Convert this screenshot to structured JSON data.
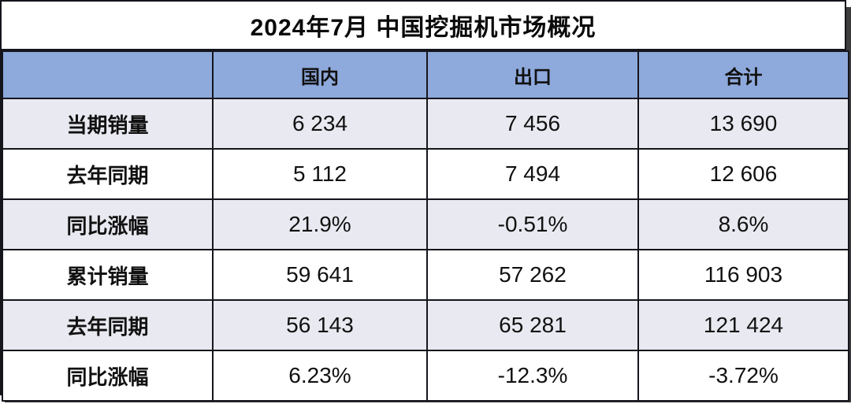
{
  "title": "2024年7月 中国挖掘机市场概况",
  "chart_data": {
    "type": "table",
    "title": "2024年7月 中国挖掘机市场概况",
    "columns": [
      "",
      "国内",
      "出口",
      "合计"
    ],
    "rows": [
      [
        "当期销量",
        "6 234",
        "7 456",
        "13 690"
      ],
      [
        "去年同期",
        "5 112",
        "7 494",
        "12 606"
      ],
      [
        "同比涨幅",
        "21.9%",
        "-0.51%",
        "8.6%"
      ],
      [
        "累计销量",
        "59 641",
        "57 262",
        "116 903"
      ],
      [
        "去年同期",
        "56 143",
        "65 281",
        "121 424"
      ],
      [
        "同比涨幅",
        "6.23%",
        "-12.3%",
        "-3.72%"
      ]
    ],
    "layout": {
      "striped": true,
      "stripe_rows": [
        0,
        2,
        4
      ],
      "header_fill": "#8ea9db",
      "stripe_fill": "#e9e9f1",
      "border_color": "#15151c",
      "shadow_color": "#3d3d3d"
    }
  },
  "colors": {
    "header_blue": "#8ea9db",
    "row_lavender": "#e9e9f1",
    "row_white": "#ffffff",
    "border": "#15151c",
    "shadow": "#3d3d3d",
    "text": "#111111"
  }
}
